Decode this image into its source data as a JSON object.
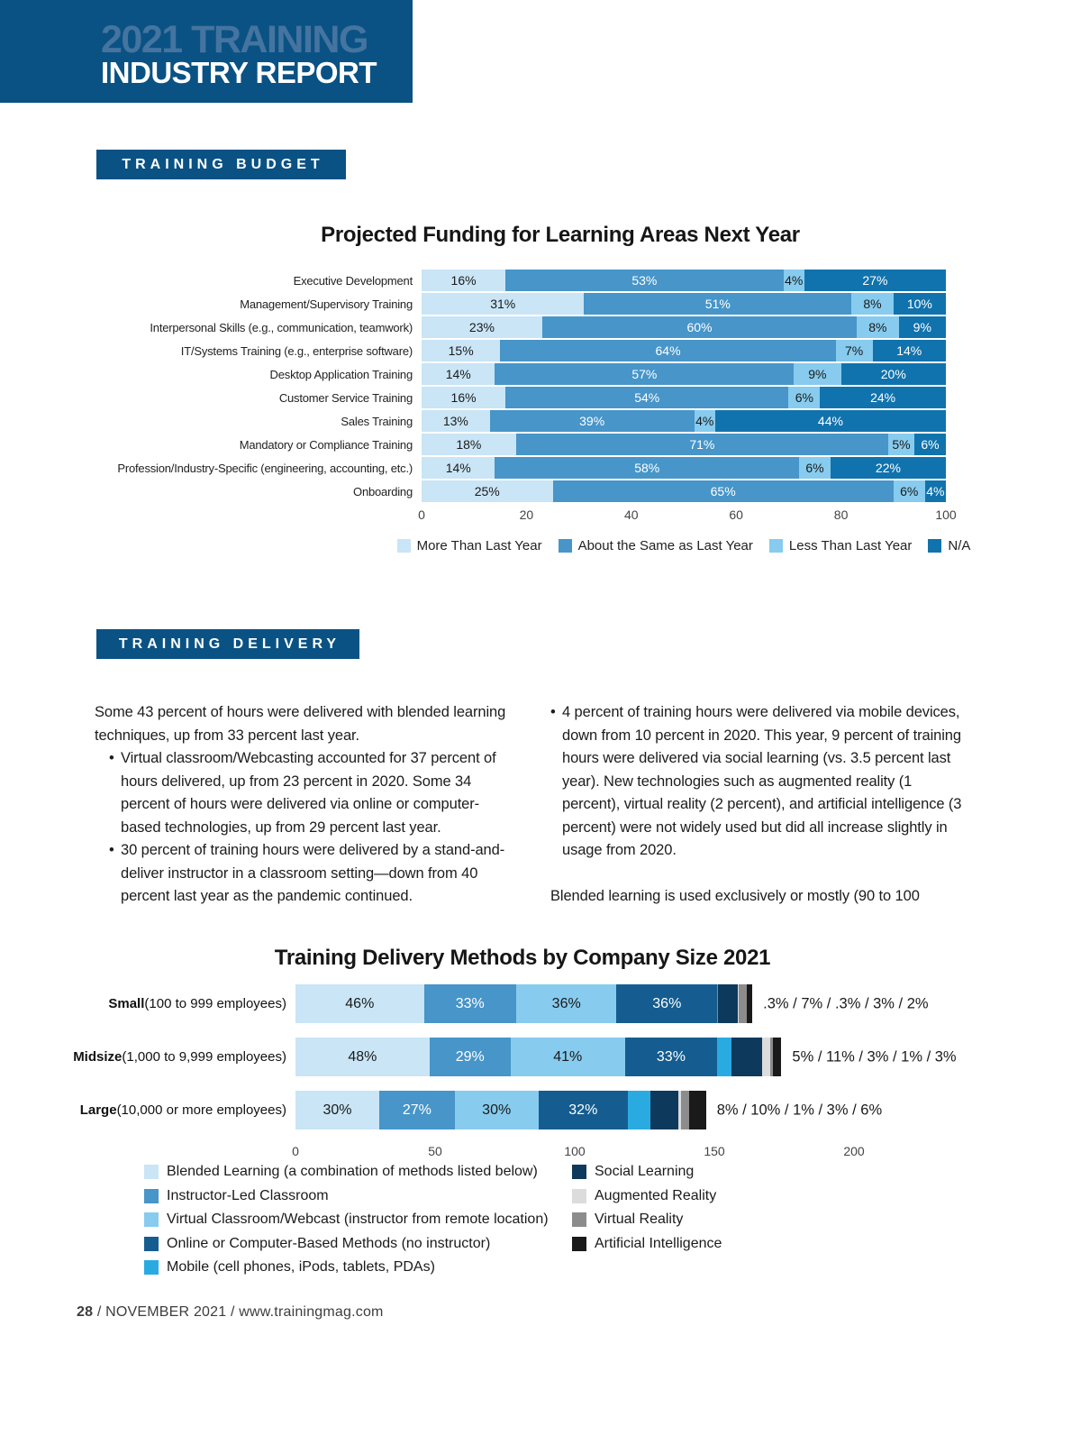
{
  "header": {
    "line1": "2021 TRAINING",
    "line2": "INDUSTRY REPORT"
  },
  "sections": {
    "budget": "TRAINING BUDGET",
    "delivery": "TRAINING DELIVERY"
  },
  "colors": {
    "brand_blue": "#0a5284",
    "logo_accent": "#44749f",
    "light_blue": "#c9e5f6",
    "medium_blue": "#4795c9",
    "pale_blue": "#87cbee",
    "dark_blue": "#1173ad",
    "navy": "#0d3a5c",
    "cyan": "#29abe2",
    "light_gray": "#dcdcdc",
    "gray": "#8c8c8c",
    "black": "#1a1a1a"
  },
  "delivery_text": {
    "bullet_char": "•",
    "left": [
      {
        "type": "p",
        "text": "Some 43 percent of hours were delivered with blended learning techniques, up from 33 percent last year."
      },
      {
        "type": "bullet",
        "text": "Virtual classroom/Webcasting accounted for 37 percent of hours delivered, up from 23 percent in 2020. Some 34 percent of hours were delivered via online or computer-based technologies, up from 29 percent last year."
      },
      {
        "type": "bullet",
        "text": "30 percent of training hours were delivered by a stand-and-deliver instructor in a classroom setting—down from 40 percent last year as the pandemic continued."
      }
    ],
    "right": [
      {
        "type": "bullet",
        "text": "4 percent of training hours were delivered via mobile devices, down from 10 percent in 2020. This year, 9 percent of training hours were delivered via social learning (vs. 3.5 percent last year). New technologies such as augmented reality (1 percent), virtual reality (2 percent), and artificial intelligence (3 percent) were not widely used but did all increase slightly in usage from 2020."
      },
      {
        "type": "p",
        "text": "Blended learning is used exclusively or mostly (90 to 100"
      }
    ]
  },
  "chart_data": [
    {
      "type": "bar",
      "orientation": "horizontal",
      "stacked": true,
      "title": "Projected Funding for Learning Areas Next Year",
      "categories": [
        "Executive Development",
        "Management/Supervisory Training",
        "Interpersonal Skills (e.g., communication, teamwork)",
        "IT/Systems Training (e.g., enterprise software)",
        "Desktop Application Training",
        "Customer Service Training",
        "Sales Training",
        "Mandatory or Compliance Training",
        "Profession/Industry-Specific (engineering, accounting, etc.)",
        "Onboarding"
      ],
      "series": [
        {
          "name": "More Than Last Year",
          "color": "#c9e5f6",
          "label_color": "#1a1a1a",
          "values": [
            16,
            31,
            23,
            15,
            14,
            16,
            13,
            18,
            14,
            25
          ]
        },
        {
          "name": "About the Same as Last Year",
          "color": "#4795c9",
          "label_color": "#ffffff",
          "values": [
            53,
            51,
            60,
            64,
            57,
            54,
            39,
            71,
            58,
            65
          ]
        },
        {
          "name": "Less Than Last Year",
          "color": "#87cbee",
          "label_color": "#1a1a1a",
          "values": [
            4,
            8,
            8,
            7,
            9,
            6,
            4,
            5,
            6,
            6
          ]
        },
        {
          "name": "N/A",
          "color": "#1173ad",
          "label_color": "#ffffff",
          "values": [
            27,
            10,
            9,
            14,
            20,
            24,
            44,
            6,
            22,
            4
          ]
        }
      ],
      "xlim": [
        0,
        100
      ],
      "x_ticks": [
        "0",
        "20",
        "40",
        "60",
        "80",
        "100"
      ],
      "legend_position": "bottom"
    },
    {
      "type": "bar",
      "orientation": "horizontal",
      "stacked": true,
      "title": "Training Delivery Methods by Company Size 2021",
      "categories": [
        {
          "bold": "Small",
          "rest": " (100 to 999 employees)"
        },
        {
          "bold": "Midsize",
          "rest": " (1,000 to 9,999 employees)"
        },
        {
          "bold": "Large",
          "rest": " (10,000 or more employees)"
        }
      ],
      "series": [
        {
          "name": "Blended Learning (a combination of methods listed below)",
          "color": "#c9e5f6",
          "label_color": "#1a1a1a",
          "show_labels": true,
          "values": [
            46,
            48,
            30
          ]
        },
        {
          "name": "Instructor-Led Classroom",
          "color": "#4795c9",
          "label_color": "#ffffff",
          "show_labels": true,
          "values": [
            33,
            29,
            27
          ]
        },
        {
          "name": "Virtual Classroom/Webcast (instructor from remote location)",
          "color": "#87cbee",
          "label_color": "#1a1a1a",
          "show_labels": true,
          "values": [
            36,
            41,
            30
          ]
        },
        {
          "name": "Online or Computer-Based Methods (no instructor)",
          "color": "#155d90",
          "label_color": "#ffffff",
          "show_labels": true,
          "values": [
            36,
            33,
            32
          ]
        },
        {
          "name": "Mobile (cell phones, iPods, tablets, PDAs)",
          "color": "#29abe2",
          "show_labels": false,
          "values": [
            0.3,
            5,
            8
          ]
        },
        {
          "name": "Social Learning",
          "color": "#0d3a5c",
          "show_labels": false,
          "values": [
            7,
            11,
            10
          ]
        },
        {
          "name": "Augmented Reality",
          "color": "#dcdcdc",
          "show_labels": false,
          "values": [
            0.3,
            3,
            1
          ]
        },
        {
          "name": "Virtual Reality",
          "color": "#8c8c8c",
          "show_labels": false,
          "values": [
            3,
            1,
            3
          ]
        },
        {
          "name": "Artificial Intelligence",
          "color": "#1a1a1a",
          "show_labels": false,
          "values": [
            2,
            3,
            6
          ]
        }
      ],
      "annotations": [
        ".3% / 7% / .3% / 3% / 2%",
        "5% / 11% / 3% / 1% / 3%",
        "8% / 10% / 1% / 3% / 6%"
      ],
      "xlim": [
        0,
        200
      ],
      "x_ticks": [
        "0",
        "50",
        "100",
        "150",
        "200"
      ],
      "legend_columns": {
        "left": [
          0,
          1,
          2,
          3,
          4
        ],
        "right": [
          5,
          6,
          7,
          8
        ]
      }
    }
  ],
  "footer": {
    "page_number": "28",
    "text": " / NOVEMBER 2021 / www.trainingmag.com"
  }
}
